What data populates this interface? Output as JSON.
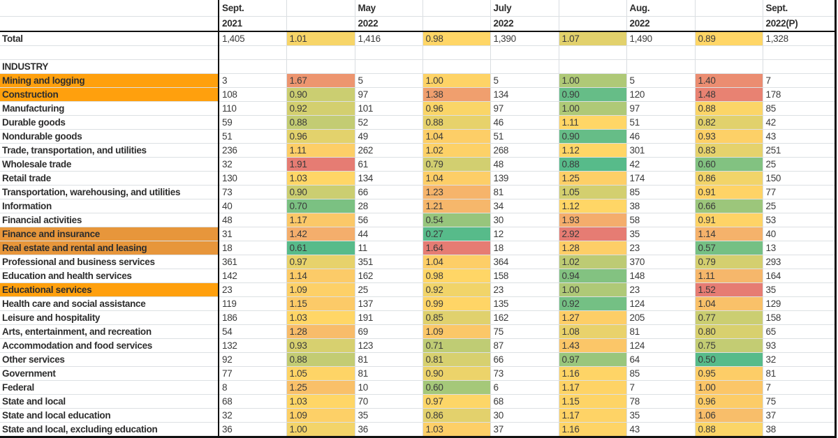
{
  "sheet": {
    "columns": [
      {
        "kind": "label",
        "header_line1": "",
        "header_line2": ""
      },
      {
        "kind": "value",
        "header_line1": "Sept.",
        "header_line2": "2021"
      },
      {
        "kind": "ratio",
        "header_line1": "",
        "header_line2": ""
      },
      {
        "kind": "value",
        "header_line1": "May",
        "header_line2": "2022"
      },
      {
        "kind": "ratio",
        "header_line1": "",
        "header_line2": ""
      },
      {
        "kind": "value",
        "header_line1": "July",
        "header_line2": "2022"
      },
      {
        "kind": "ratio",
        "header_line1": "",
        "header_line2": ""
      },
      {
        "kind": "value",
        "header_line1": "Aug.",
        "header_line2": "2022"
      },
      {
        "kind": "ratio",
        "header_line1": "",
        "header_line2": ""
      },
      {
        "kind": "value",
        "header_line1": "Sept.",
        "header_line2": "2022(P)"
      }
    ],
    "rows": [
      {
        "label": "Total",
        "style": "total",
        "cells": [
          "1,405",
          "1.01",
          "1,416",
          "0.98",
          "1,390",
          "1.07",
          "1,490",
          "0.89",
          "1,328"
        ]
      },
      {
        "label": "",
        "style": "blank",
        "cells": [
          "",
          "",
          "",
          "",
          "",
          "",
          "",
          "",
          ""
        ]
      },
      {
        "label": "INDUSTRY",
        "style": "section",
        "cells": [
          "",
          "",
          "",
          "",
          "",
          "",
          "",
          "",
          ""
        ]
      },
      {
        "label": "Mining and logging",
        "style": "highlight-bright",
        "cells": [
          "3",
          "1.67",
          "5",
          "1.00",
          "5",
          "1.00",
          "5",
          "1.40",
          "7"
        ]
      },
      {
        "label": "Construction",
        "style": "highlight-bright",
        "cells": [
          "108",
          "0.90",
          "97",
          "1.38",
          "134",
          "0.90",
          "120",
          "1.48",
          "178"
        ]
      },
      {
        "label": "Manufacturing",
        "style": "normal",
        "cells": [
          "110",
          "0.92",
          "101",
          "0.96",
          "97",
          "1.00",
          "97",
          "0.88",
          "85"
        ]
      },
      {
        "label": "Durable goods",
        "style": "normal",
        "cells": [
          "59",
          "0.88",
          "52",
          "0.88",
          "46",
          "1.11",
          "51",
          "0.82",
          "42"
        ]
      },
      {
        "label": "Nondurable goods",
        "style": "normal",
        "cells": [
          "51",
          "0.96",
          "49",
          "1.04",
          "51",
          "0.90",
          "46",
          "0.93",
          "43"
        ]
      },
      {
        "label": "Trade, transportation, and utilities",
        "style": "normal",
        "cells": [
          "236",
          "1.11",
          "262",
          "1.02",
          "268",
          "1.12",
          "301",
          "0.83",
          "251"
        ]
      },
      {
        "label": "Wholesale trade",
        "style": "normal",
        "cells": [
          "32",
          "1.91",
          "61",
          "0.79",
          "48",
          "0.88",
          "42",
          "0.60",
          "25"
        ]
      },
      {
        "label": "Retail trade",
        "style": "normal",
        "cells": [
          "130",
          "1.03",
          "134",
          "1.04",
          "139",
          "1.25",
          "174",
          "0.86",
          "150"
        ]
      },
      {
        "label": "Transportation, warehousing, and utilities",
        "style": "normal",
        "cells": [
          "73",
          "0.90",
          "66",
          "1.23",
          "81",
          "1.05",
          "85",
          "0.91",
          "77"
        ]
      },
      {
        "label": "Information",
        "style": "normal",
        "cells": [
          "40",
          "0.70",
          "28",
          "1.21",
          "34",
          "1.12",
          "38",
          "0.66",
          "25"
        ]
      },
      {
        "label": "Financial activities",
        "style": "normal",
        "cells": [
          "48",
          "1.17",
          "56",
          "0.54",
          "30",
          "1.93",
          "58",
          "0.91",
          "53"
        ]
      },
      {
        "label": "Finance and insurance",
        "style": "highlight-muted",
        "cells": [
          "31",
          "1.42",
          "44",
          "0.27",
          "12",
          "2.92",
          "35",
          "1.14",
          "40"
        ]
      },
      {
        "label": "Real estate and rental and leasing",
        "style": "highlight-muted",
        "cells": [
          "18",
          "0.61",
          "11",
          "1.64",
          "18",
          "1.28",
          "23",
          "0.57",
          "13"
        ]
      },
      {
        "label": "Professional and business services",
        "style": "normal",
        "cells": [
          "361",
          "0.97",
          "351",
          "1.04",
          "364",
          "1.02",
          "370",
          "0.79",
          "293"
        ]
      },
      {
        "label": "Education and health services",
        "style": "normal",
        "cells": [
          "142",
          "1.14",
          "162",
          "0.98",
          "158",
          "0.94",
          "148",
          "1.11",
          "164"
        ]
      },
      {
        "label": "Educational services",
        "style": "highlight-bright",
        "cells": [
          "23",
          "1.09",
          "25",
          "0.92",
          "23",
          "1.00",
          "23",
          "1.52",
          "35"
        ]
      },
      {
        "label": "Health care and social assistance",
        "style": "normal",
        "cells": [
          "119",
          "1.15",
          "137",
          "0.99",
          "135",
          "0.92",
          "124",
          "1.04",
          "129"
        ]
      },
      {
        "label": "Leisure and hospitality",
        "style": "normal",
        "cells": [
          "186",
          "1.03",
          "191",
          "0.85",
          "162",
          "1.27",
          "205",
          "0.77",
          "158"
        ]
      },
      {
        "label": "Arts, entertainment, and recreation",
        "style": "normal",
        "cells": [
          "54",
          "1.28",
          "69",
          "1.09",
          "75",
          "1.08",
          "81",
          "0.80",
          "65"
        ]
      },
      {
        "label": "Accommodation and food services",
        "style": "normal",
        "cells": [
          "132",
          "0.93",
          "123",
          "0.71",
          "87",
          "1.43",
          "124",
          "0.75",
          "93"
        ]
      },
      {
        "label": "Other services",
        "style": "normal",
        "cells": [
          "92",
          "0.88",
          "81",
          "0.81",
          "66",
          "0.97",
          "64",
          "0.50",
          "32"
        ]
      },
      {
        "label": "Government",
        "style": "normal",
        "cells": [
          "77",
          "1.05",
          "81",
          "0.90",
          "73",
          "1.16",
          "85",
          "0.95",
          "81"
        ]
      },
      {
        "label": "Federal",
        "style": "normal",
        "cells": [
          "8",
          "1.25",
          "10",
          "0.60",
          "6",
          "1.17",
          "7",
          "1.00",
          "7"
        ]
      },
      {
        "label": "State and local",
        "style": "normal",
        "cells": [
          "68",
          "1.03",
          "70",
          "0.97",
          "68",
          "1.15",
          "78",
          "0.96",
          "75"
        ]
      },
      {
        "label": "State and local education",
        "style": "normal",
        "cells": [
          "32",
          "1.09",
          "35",
          "0.86",
          "30",
          "1.17",
          "35",
          "1.06",
          "37"
        ]
      },
      {
        "label": "State and local, excluding education",
        "style": "normal",
        "cells": [
          "36",
          "1.00",
          "36",
          "1.03",
          "37",
          "1.16",
          "43",
          "0.88",
          "38"
        ]
      }
    ],
    "colors": {
      "scale_min_green": "#57BB8A",
      "scale_mid_yellow": "#FFD666",
      "scale_max_red": "#E67C73",
      "highlight_bright_orange": "#FFA00D",
      "highlight_muted_orange": "#E7963B",
      "border_black": "#111111",
      "gridline": "#DCE0E3",
      "text": "#3A3A3A"
    }
  }
}
